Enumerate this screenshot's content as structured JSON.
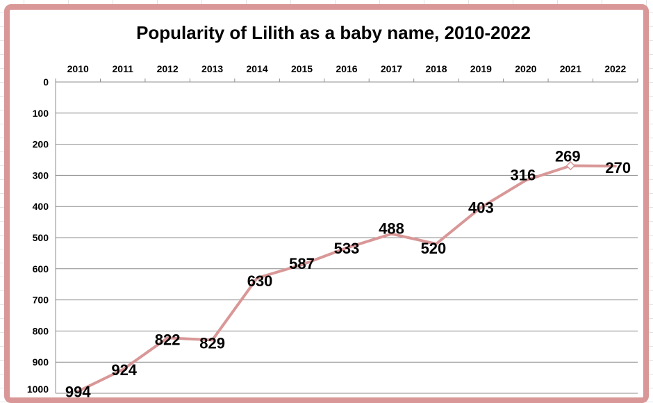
{
  "colors": {
    "series": "#d99797",
    "frame": "#d99797",
    "gridline": "#8c8c8c",
    "background": "#ffffff"
  },
  "chart_data": {
    "type": "line",
    "title": "Popularity of Lilith as a baby name, 2010-2022",
    "xlabel": "",
    "ylabel": "",
    "categories": [
      "2010",
      "2011",
      "2012",
      "2013",
      "2014",
      "2015",
      "2016",
      "2017",
      "2018",
      "2019",
      "2020",
      "2021",
      "2022"
    ],
    "series": [
      {
        "values": [
          994,
          924,
          822,
          829,
          630,
          587,
          533,
          488,
          520,
          403,
          316,
          269,
          270
        ]
      }
    ],
    "ylim": [
      0,
      1000
    ],
    "y_reversed": true,
    "y_ticks": [
      0,
      100,
      200,
      300,
      400,
      500,
      600,
      700,
      800,
      900,
      1000
    ],
    "x_axis_position": "top",
    "grid": true,
    "legend": "none",
    "data_labels": true
  }
}
